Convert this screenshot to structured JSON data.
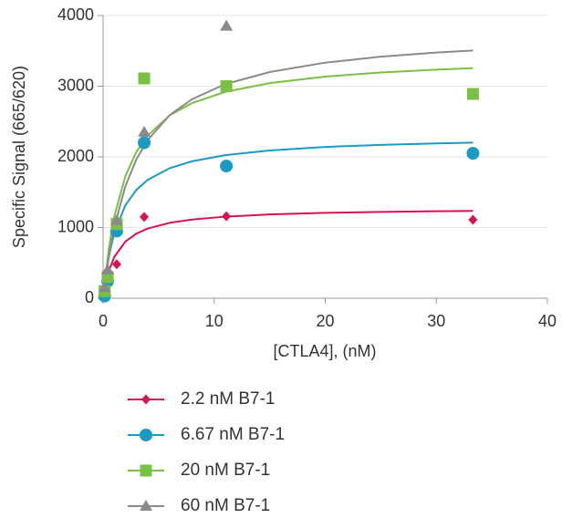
{
  "chart_data": {
    "type": "scatter",
    "x_label": "[CTLA4], (nM)",
    "y_label": "Specific Signal (665/620)",
    "xlim": [
      0,
      40
    ],
    "xticks": [
      0,
      10,
      20,
      30,
      40
    ],
    "ylim": [
      0,
      4000
    ],
    "yticks": [
      0,
      1000,
      2000,
      3000,
      4000
    ],
    "grid": true,
    "x": [
      0.14,
      0.41,
      1.23,
      3.7,
      11.1,
      33.3
    ],
    "fit_x": [
      0,
      0.5,
      1,
      2,
      3,
      4,
      6,
      8,
      11,
      15,
      20,
      25,
      30,
      33.3
    ],
    "series": [
      {
        "name": "2.2 nM B7-1",
        "color": "#d6134c",
        "marker": "diamond",
        "values": [
          60,
          250,
          480,
          1150,
          1160,
          1110
        ],
        "fit": [
          0,
          376,
          582,
          800,
          914,
          985,
          1067,
          1113,
          1154,
          1185,
          1208,
          1221,
          1231,
          1235
        ]
      },
      {
        "name": "6.67 nM B7-1",
        "color": "#1a9bc4",
        "marker": "circle",
        "values": [
          30,
          240,
          950,
          2200,
          1870,
          2050
        ],
        "fit": [
          0,
          575,
          920,
          1314,
          1533,
          1673,
          1840,
          1937,
          2024,
          2091,
          2140,
          2170,
          2190,
          2201
        ]
      },
      {
        "name": "20 nM B7-1",
        "color": "#7ac143",
        "marker": "square",
        "values": [
          100,
          300,
          1050,
          3110,
          3000,
          2890
        ],
        "fit": [
          0,
          690,
          1150,
          1725,
          2070,
          2300,
          2588,
          2760,
          2919,
          3044,
          3136,
          3194,
          3234,
          3255
        ]
      },
      {
        "name": "60 nM B7-1",
        "color": "#8a8a8a",
        "marker": "triangle",
        "values": [
          150,
          400,
          1100,
          2350,
          3850,
          null
        ],
        "fit": [
          0,
          576,
          1000,
          1583,
          1966,
          2235,
          2591,
          2815,
          3029,
          3200,
          3333,
          3417,
          3476,
          3505
        ]
      }
    ]
  }
}
